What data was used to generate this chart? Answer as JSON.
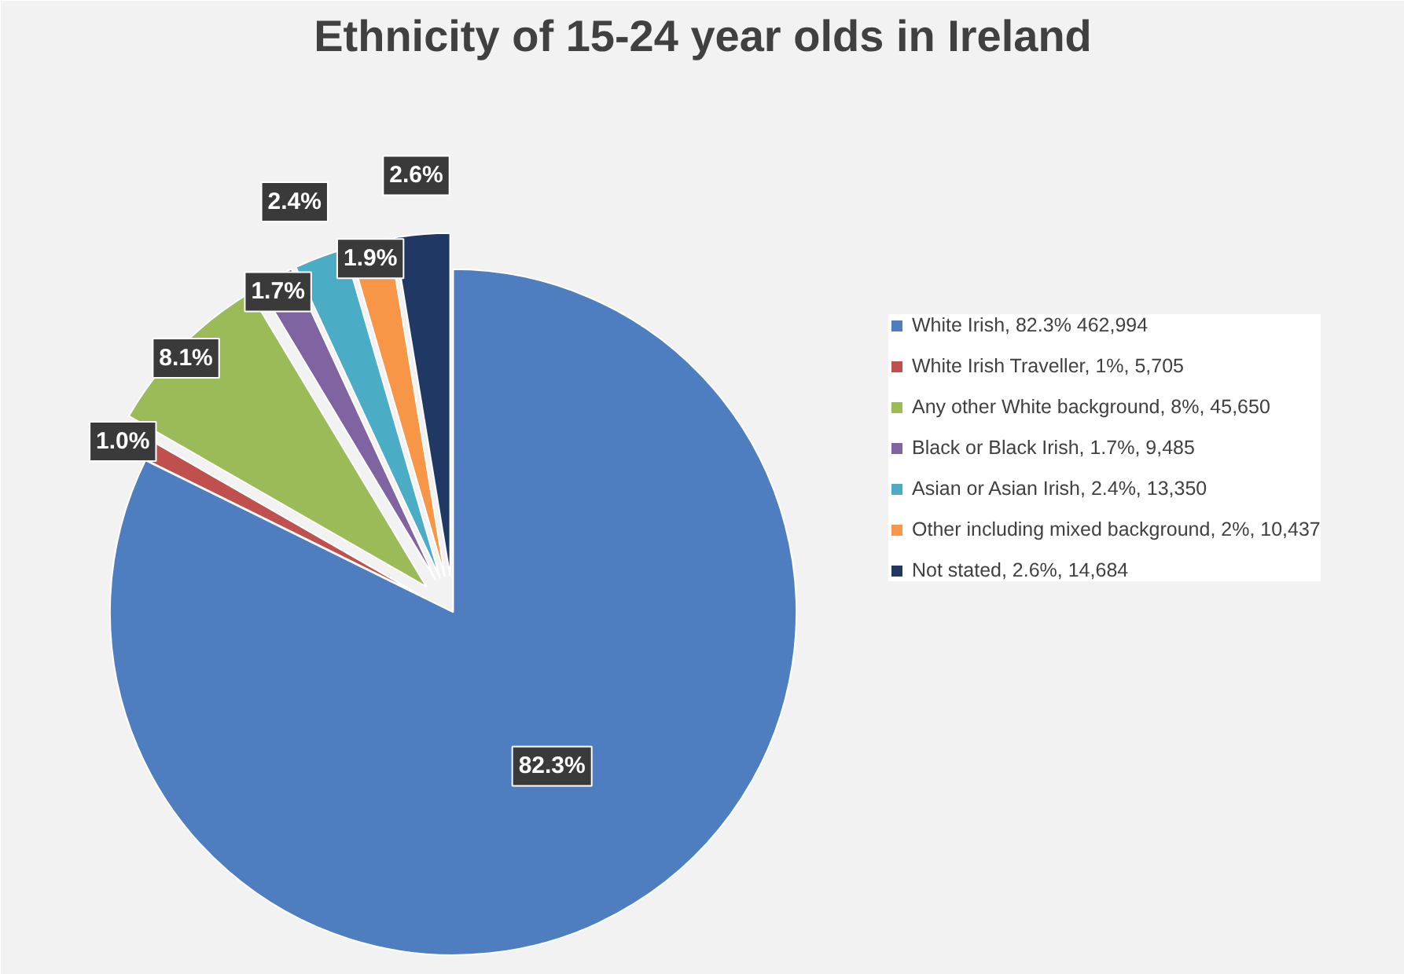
{
  "chart_data": {
    "type": "pie",
    "title": "Ethnicity of 15-24 year olds in Ireland",
    "categories": [
      "White Irish, 82.3% 462,994",
      "White Irish Traveller, 1%, 5,705",
      "Any other White background, 8%, 45,650",
      "Black or Black Irish, 1.7%, 9,485",
      "Asian or Asian Irish, 2.4%, 13,350",
      "Other including mixed background, 2%, 10,437",
      "Not stated, 2.6%, 14,684"
    ],
    "values": [
      82.3,
      1.0,
      8.1,
      1.7,
      2.4,
      1.9,
      2.6
    ],
    "value_labels": [
      "82.3%",
      "1.0%",
      "8.1%",
      "1.7%",
      "2.4%",
      "1.9%",
      "2.6%"
    ],
    "colors": [
      "#4f7ec0",
      "#c0504d",
      "#9bbb59",
      "#8064a2",
      "#4bacc6",
      "#f79646",
      "#1f3864"
    ],
    "legend": "right"
  }
}
